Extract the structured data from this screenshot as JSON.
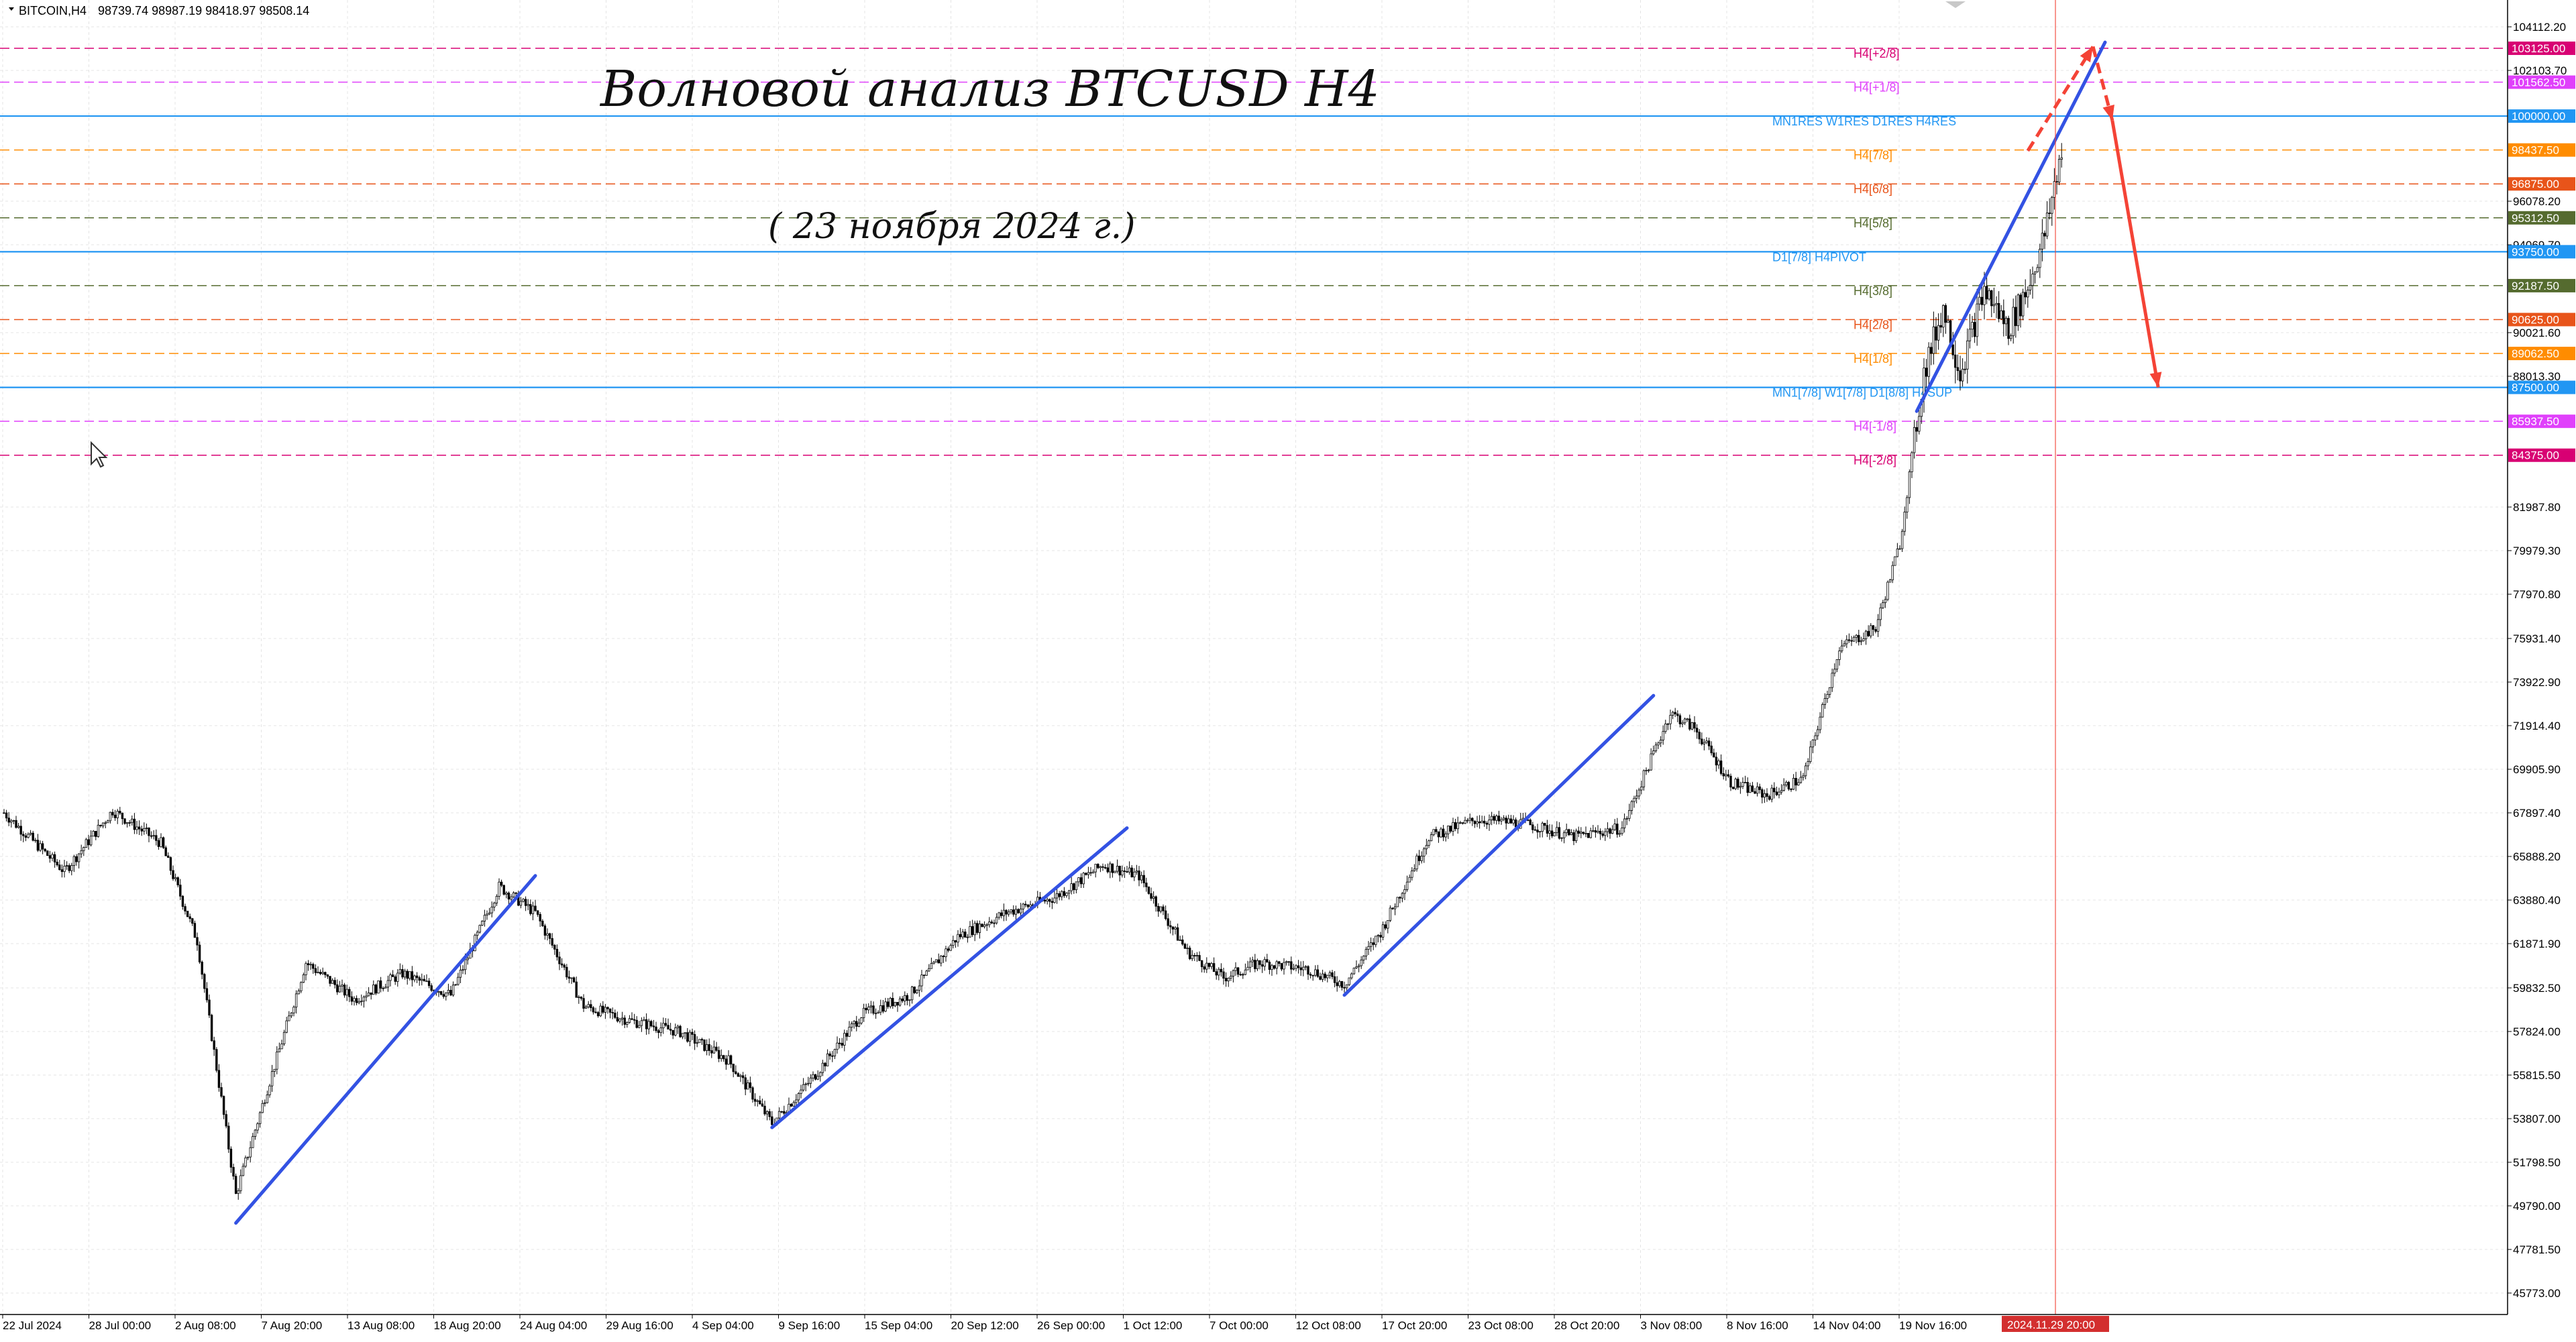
{
  "header": {
    "symbol": "BITCOIN,H4",
    "ohlc": "98739.74 98987.19 98418.97 98508.14"
  },
  "annotations": {
    "title": "Волновой анализ BTCUSD H4",
    "date": "( 23 ноября 2024 г.)"
  },
  "chart_data": {
    "type": "candlestick",
    "symbol": "BITCOIN",
    "timeframe": "H4",
    "ylim": [
      45773,
      104112.2
    ],
    "price_axis_ticks": [
      "104112.20",
      "102103.70",
      "96078.20",
      "94069.70",
      "90021.60",
      "88013.30",
      "81987.80",
      "79979.30",
      "77970.80",
      "75931.40",
      "73922.90",
      "71914.40",
      "69905.90",
      "67897.40",
      "65888.20",
      "63880.40",
      "61871.90",
      "59832.50",
      "57824.00",
      "55815.50",
      "53807.00",
      "51798.50",
      "49790.00",
      "47781.50",
      "45773.00"
    ],
    "time_axis_labels": [
      "22 Jul 2024",
      "28 Jul 00:00",
      "2 Aug 08:00",
      "7 Aug 20:00",
      "13 Aug 08:00",
      "18 Aug 20:00",
      "24 Aug 04:00",
      "29 Aug 16:00",
      "4 Sep 04:00",
      "9 Sep 16:00",
      "15 Sep 04:00",
      "20 Sep 12:00",
      "26 Sep 00:00",
      "1 Oct 12:00",
      "7 Oct 00:00",
      "12 Oct 08:00",
      "17 Oct 20:00",
      "23 Oct 08:00",
      "28 Oct 20:00",
      "3 Nov 08:00",
      "8 Nov 16:00",
      "14 Nov 04:00",
      "19 Nov 16:00"
    ],
    "current_time_marker": "2024.11.29 20:00",
    "murrey_levels": [
      {
        "price": 103125.0,
        "name": "H4[+2/8]",
        "tag": "103125.00",
        "color": "#d80073",
        "dash": true
      },
      {
        "price": 101562.5,
        "name": "H4[+1/8]",
        "tag": "101562.50",
        "color": "#e040fb",
        "dash": true
      },
      {
        "price": 100000.0,
        "name": "MN1RES W1RES D1RES H4RES",
        "tag": "100000.00",
        "color": "#2196f3",
        "dash": false
      },
      {
        "price": 98437.5,
        "name": "H4[7/8]",
        "tag": "98437.50",
        "color": "#ff8c00",
        "dash": true
      },
      {
        "price": 96875.0,
        "name": "H4[6/8]",
        "tag": "96875.00",
        "color": "#e8541a",
        "dash": true
      },
      {
        "price": 95312.5,
        "name": "H4[5/8]",
        "tag": "95312.50",
        "color": "#556b2f",
        "dash": true
      },
      {
        "price": 93750.0,
        "name": "D1[7/8] H4PIVOT",
        "tag": "93750.00",
        "color": "#2196f3",
        "dash": false
      },
      {
        "price": 92187.5,
        "name": "H4[3/8]",
        "tag": "92187.50",
        "color": "#556b2f",
        "dash": true
      },
      {
        "price": 90625.0,
        "name": "H4[2/8]",
        "tag": "90625.00",
        "color": "#e8541a",
        "dash": true
      },
      {
        "price": 89062.5,
        "name": "H4[1/8]",
        "tag": "89062.50",
        "color": "#ff8c00",
        "dash": true
      },
      {
        "price": 87500.0,
        "name": "MN1[7/8] W1[7/8] D1[8/8] H4SUP",
        "tag": "87500.00",
        "color": "#2196f3",
        "dash": false
      },
      {
        "price": 85937.5,
        "name": "H4[-1/8]",
        "tag": "85937.50",
        "color": "#e040fb",
        "dash": true
      },
      {
        "price": 84375.0,
        "name": "H4[-2/8]",
        "tag": "84375.00",
        "color": "#d80073",
        "dash": true
      }
    ],
    "price_anchors": [
      {
        "bar": 0,
        "price": 67900
      },
      {
        "bar": 25,
        "price": 65200
      },
      {
        "bar": 45,
        "price": 68000
      },
      {
        "bar": 65,
        "price": 66500
      },
      {
        "bar": 80,
        "price": 62000
      },
      {
        "bar": 96,
        "price": 50300
      },
      {
        "bar": 108,
        "price": 54800
      },
      {
        "bar": 125,
        "price": 61000
      },
      {
        "bar": 145,
        "price": 59300
      },
      {
        "bar": 165,
        "price": 60500
      },
      {
        "bar": 185,
        "price": 59500
      },
      {
        "bar": 205,
        "price": 64500
      },
      {
        "bar": 220,
        "price": 63300
      },
      {
        "bar": 240,
        "price": 59000
      },
      {
        "bar": 260,
        "price": 58300
      },
      {
        "bar": 280,
        "price": 57800
      },
      {
        "bar": 300,
        "price": 56500
      },
      {
        "bar": 318,
        "price": 53600
      },
      {
        "bar": 335,
        "price": 55700
      },
      {
        "bar": 355,
        "price": 58600
      },
      {
        "bar": 375,
        "price": 59500
      },
      {
        "bar": 395,
        "price": 62200
      },
      {
        "bar": 415,
        "price": 63300
      },
      {
        "bar": 435,
        "price": 64000
      },
      {
        "bar": 455,
        "price": 65500
      },
      {
        "bar": 470,
        "price": 65000
      },
      {
        "bar": 490,
        "price": 61500
      },
      {
        "bar": 505,
        "price": 60300
      },
      {
        "bar": 520,
        "price": 61000
      },
      {
        "bar": 540,
        "price": 60700
      },
      {
        "bar": 555,
        "price": 60000
      },
      {
        "bar": 570,
        "price": 62400
      },
      {
        "bar": 590,
        "price": 66800
      },
      {
        "bar": 610,
        "price": 67600
      },
      {
        "bar": 630,
        "price": 67400
      },
      {
        "bar": 650,
        "price": 66800
      },
      {
        "bar": 670,
        "price": 67200
      },
      {
        "bar": 690,
        "price": 72500
      },
      {
        "bar": 700,
        "price": 71800
      },
      {
        "bar": 715,
        "price": 69300
      },
      {
        "bar": 730,
        "price": 68700
      },
      {
        "bar": 745,
        "price": 69500
      },
      {
        "bar": 760,
        "price": 75500
      },
      {
        "bar": 775,
        "price": 76400
      },
      {
        "bar": 785,
        "price": 80300
      },
      {
        "bar": 795,
        "price": 88200
      },
      {
        "bar": 803,
        "price": 91200
      },
      {
        "bar": 810,
        "price": 88200
      },
      {
        "bar": 820,
        "price": 92000
      },
      {
        "bar": 830,
        "price": 90200
      },
      {
        "bar": 838,
        "price": 92100
      },
      {
        "bar": 845,
        "price": 94500
      },
      {
        "bar": 852,
        "price": 98500
      }
    ],
    "wave_lines": [
      {
        "from": {
          "bar": 96,
          "price": 49000
        },
        "to": {
          "bar": 220,
          "price": 65000
        }
      },
      {
        "from": {
          "bar": 318,
          "price": 53400
        },
        "to": {
          "bar": 465,
          "price": 67200
        }
      },
      {
        "from": {
          "bar": 555,
          "price": 59500
        },
        "to": {
          "bar": 683,
          "price": 73300
        }
      },
      {
        "from": {
          "bar": 792,
          "price": 86400
        },
        "to": {
          "bar": 870,
          "price": 103400
        }
      }
    ],
    "forecast": [
      {
        "from": {
          "bar": 838,
          "price": 98400
        },
        "to": {
          "bar": 865,
          "price": 103200
        },
        "style": "dashed"
      },
      {
        "from": {
          "bar": 865,
          "price": 103200
        },
        "to": {
          "bar": 873,
          "price": 99800
        },
        "style": "dashed"
      },
      {
        "from": {
          "bar": 873,
          "price": 99800
        },
        "to": {
          "bar": 892,
          "price": 87500
        },
        "style": "solid"
      }
    ],
    "forecast_color": "#f44336",
    "wave_color": "#3352e3",
    "grid": true
  }
}
